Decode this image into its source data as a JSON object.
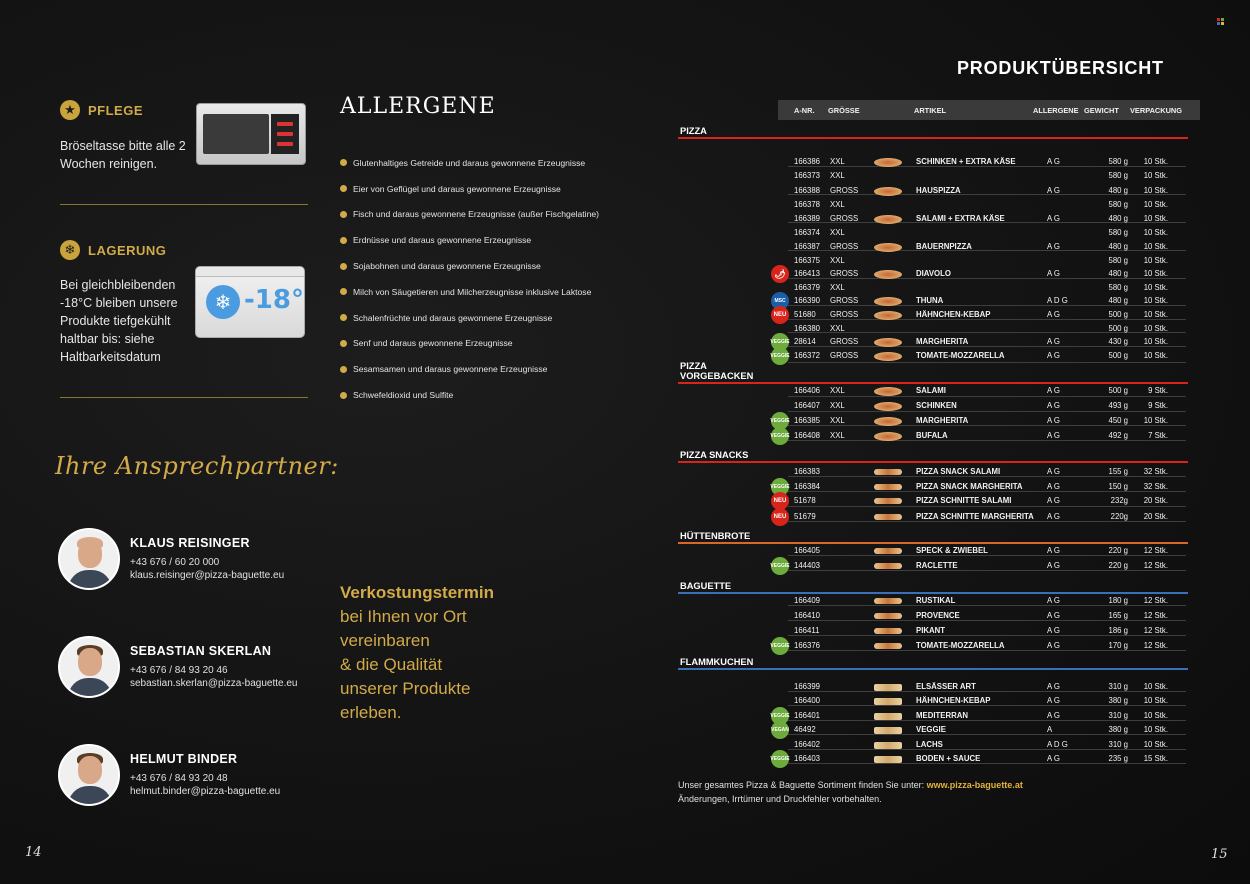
{
  "left_page": {
    "pflege": {
      "title": "PFLEGE",
      "text": "Bröseltasse bitte alle 2 Wochen reinigen."
    },
    "lagerung": {
      "title": "LAGERUNG",
      "text": "Bei gleichbleibenden -18°C bleiben unsere Produkte tiefgekühlt haltbar bis: siehe Haltbarkeitsdatum",
      "freezer_label": "-18°"
    },
    "allergene": {
      "title": "ALLERGENE",
      "items": [
        "Glutenhaltiges Getreide und daraus gewonnene Erzeugnisse",
        "Eier von Geflügel und daraus gewonnene Erzeugnisse",
        "Fisch und daraus gewonnene Erzeugnisse (außer Fischgelatine)",
        "Erdnüsse und daraus gewonnene Erzeugnisse",
        "Sojabohnen und daraus gewonnene Erzeugnisse",
        "Milch von Säugetieren und Milcherzeugnisse inklusive Laktose",
        "Schalenfrüchte und daraus gewonnene Erzeugnisse",
        "Senf und daraus gewonnene Erzeugnisse",
        "Sesamsamen und daraus gewonnene Erzeugnisse",
        "Schwefeldioxid und Sulfite"
      ]
    },
    "contacts_title": "Ihre Ansprechpartner:",
    "contacts": [
      {
        "name": "KLAUS REISINGER",
        "phone": "+43 676 / 60 20 000",
        "email": "klaus.reisinger@pizza-baguette.eu"
      },
      {
        "name": "SEBASTIAN SKERLAN",
        "phone": "+43 676 / 84 93 20 46",
        "email": "sebastian.skerlan@pizza-baguette.eu"
      },
      {
        "name": "HELMUT BINDER",
        "phone": "+43 676 / 84 93 20 48",
        "email": "helmut.binder@pizza-baguette.eu"
      }
    ],
    "verkostung": {
      "line1": "Verkostungstermin",
      "line2": "bei Ihnen vor Ort",
      "line3": "vereinbaren",
      "line4": "& die Qualität",
      "line5": "unserer Produkte",
      "line6": "erleben."
    },
    "page_number": "14"
  },
  "right_page": {
    "title": "PRODUKTÜBERSICHT",
    "columns": {
      "anr": "A-NR.",
      "groesse": "GRÖSSE",
      "artikel": "ARTIKEL",
      "allergene": "ALLERGENE",
      "gewicht": "GEWICHT",
      "verpackung": "VERPACKUNG"
    },
    "categories": [
      {
        "label": "PIZZA",
        "color": "#d8251c"
      },
      {
        "label": "PIZZA VORGEBACKEN",
        "color": "#d8251c"
      },
      {
        "label": "PIZZA SNACKS",
        "color": "#d8251c"
      },
      {
        "label": "HÜTTENBROTE",
        "color": "#d7672a"
      },
      {
        "label": "BAGUETTE",
        "color": "#3b6fb6"
      },
      {
        "label": "FLAMMKUCHEN",
        "color": "#3b6fb6"
      }
    ],
    "rows": [
      {
        "anr": "166386",
        "size": "XXL",
        "name": "SCHINKEN + EXTRA KÄSE",
        "allergens": "A G",
        "weight": "580 g",
        "pack": "10 Stk."
      },
      {
        "anr": "166373",
        "size": "XXL",
        "name": "",
        "allergens": "",
        "weight": "580 g",
        "pack": "10 Stk."
      },
      {
        "anr": "166388",
        "size": "GROSS",
        "name": "HAUSPIZZA",
        "allergens": "A G",
        "weight": "480 g",
        "pack": "10 Stk."
      },
      {
        "anr": "166378",
        "size": "XXL",
        "name": "",
        "allergens": "",
        "weight": "580 g",
        "pack": "10 Stk."
      },
      {
        "anr": "166389",
        "size": "GROSS",
        "name": "SALAMI + EXTRA KÄSE",
        "allergens": "A G",
        "weight": "480 g",
        "pack": "10 Stk."
      },
      {
        "anr": "166374",
        "size": "XXL",
        "name": "",
        "allergens": "",
        "weight": "580 g",
        "pack": "10 Stk."
      },
      {
        "anr": "166387",
        "size": "GROSS",
        "name": "BAUERNPIZZA",
        "allergens": "A G",
        "weight": "480 g",
        "pack": "10 Stk."
      },
      {
        "anr": "166375",
        "size": "XXL",
        "name": "",
        "allergens": "",
        "weight": "580 g",
        "pack": "10 Stk."
      },
      {
        "anr": "166413",
        "size": "GROSS",
        "name": "DIAVOLO",
        "allergens": "A G",
        "weight": "480 g",
        "pack": "10 Stk."
      },
      {
        "anr": "166379",
        "size": "XXL",
        "name": "",
        "allergens": "",
        "weight": "580 g",
        "pack": "10 Stk."
      },
      {
        "anr": "166390",
        "size": "GROSS",
        "name": "THUNA",
        "allergens": "A D G",
        "weight": "480 g",
        "pack": "10 Stk."
      },
      {
        "anr": "51680",
        "size": "GROSS",
        "name": "HÄHNCHEN-KEBAP",
        "allergens": "A G",
        "weight": "500 g",
        "pack": "10 Stk."
      },
      {
        "anr": "166380",
        "size": "XXL",
        "name": "",
        "allergens": "",
        "weight": "500 g",
        "pack": "10 Stk."
      },
      {
        "anr": "28614",
        "size": "GROSS",
        "name": "MARGHERITA",
        "allergens": "A G",
        "weight": "430 g",
        "pack": "10 Stk."
      },
      {
        "anr": "166372",
        "size": "GROSS",
        "name": "TOMATE-MOZZARELLA",
        "allergens": "A G",
        "weight": "500 g",
        "pack": "10 Stk."
      },
      {
        "anr": "166406",
        "size": "XXL",
        "name": "SALAMI",
        "allergens": "A G",
        "weight": "500 g",
        "pack": "9 Stk."
      },
      {
        "anr": "166407",
        "size": "XXL",
        "name": "SCHINKEN",
        "allergens": "A G",
        "weight": "493 g",
        "pack": "9 Stk."
      },
      {
        "anr": "166385",
        "size": "XXL",
        "name": "MARGHERITA",
        "allergens": "A G",
        "weight": "450 g",
        "pack": "10 Stk."
      },
      {
        "anr": "166408",
        "size": "XXL",
        "name": "BUFALA",
        "allergens": "A G",
        "weight": "492 g",
        "pack": "7 Stk."
      },
      {
        "anr": "166383",
        "size": "",
        "name": "PIZZA SNACK SALAMI",
        "allergens": "A G",
        "weight": "155 g",
        "pack": "32 Stk."
      },
      {
        "anr": "166384",
        "size": "",
        "name": "PIZZA SNACK MARGHERITA",
        "allergens": "A G",
        "weight": "150 g",
        "pack": "32 Stk."
      },
      {
        "anr": "51678",
        "size": "",
        "name": "PIZZA SCHNITTE SALAMI",
        "allergens": "A G",
        "weight": "232g",
        "pack": "20 Stk."
      },
      {
        "anr": "51679",
        "size": "",
        "name": "PIZZA SCHNITTE MARGHERITA",
        "allergens": "A G",
        "weight": "220g",
        "pack": "20 Stk."
      },
      {
        "anr": "166405",
        "size": "",
        "name": "SPECK & ZWIEBEL",
        "allergens": "A G",
        "weight": "220 g",
        "pack": "12 Stk."
      },
      {
        "anr": "144403",
        "size": "",
        "name": "RACLETTE",
        "allergens": "A G",
        "weight": "220 g",
        "pack": "12 Stk."
      },
      {
        "anr": "166409",
        "size": "",
        "name": "RUSTIKAL",
        "allergens": "A G",
        "weight": "180 g",
        "pack": "12 Stk."
      },
      {
        "anr": "166410",
        "size": "",
        "name": "PROVENCE",
        "allergens": "A G",
        "weight": "165 g",
        "pack": "12 Stk."
      },
      {
        "anr": "166411",
        "size": "",
        "name": "PIKANT",
        "allergens": "A G",
        "weight": "186 g",
        "pack": "12 Stk."
      },
      {
        "anr": "166376",
        "size": "",
        "name": "TOMATE-MOZZARELLA",
        "allergens": "A G",
        "weight": "170 g",
        "pack": "12 Stk."
      },
      {
        "anr": "166399",
        "size": "",
        "name": "ELSÄSSER ART",
        "allergens": "A G",
        "weight": "310 g",
        "pack": "10 Stk."
      },
      {
        "anr": "166400",
        "size": "",
        "name": "HÄHNCHEN-KEBAP",
        "allergens": "A G",
        "weight": "380 g",
        "pack": "10 Stk."
      },
      {
        "anr": "166401",
        "size": "",
        "name": "MEDITERRAN",
        "allergens": "A G",
        "weight": "310 g",
        "pack": "10 Stk."
      },
      {
        "anr": "46492",
        "size": "",
        "name": "VEGGIE",
        "allergens": "A",
        "weight": "380 g",
        "pack": "10 Stk."
      },
      {
        "anr": "166402",
        "size": "",
        "name": "LACHS",
        "allergens": "A D G",
        "weight": "310 g",
        "pack": "10 Stk."
      },
      {
        "anr": "166403",
        "size": "",
        "name": "BODEN + SAUCE",
        "allergens": "A G",
        "weight": "235 g",
        "pack": "15 Stk."
      }
    ],
    "badges": {
      "veggie": "VEGGIE",
      "vegan": "VEGAN",
      "neu": "NEU",
      "msc": "MSC",
      "scharf": "🌶"
    },
    "footer": {
      "line1_prefix": "Unser gesamtes Pizza & Baguette Sortiment finden Sie unter: ",
      "line1_link": "www.pizza-baguette.at",
      "line2": "Änderungen, Irrtümer und Druckfehler vorbehalten."
    },
    "page_number": "15"
  },
  "colors": {
    "gold": "#d2aa48",
    "pizza_red": "#d8251c",
    "huettenbrote_orange": "#d7672a",
    "baguette_blue": "#3b6fb6",
    "veggie_green": "#6cab3c"
  },
  "icons": [
    "star-icon",
    "snowflake-icon",
    "oven-image",
    "freezer-image",
    "chili-icon",
    "msc-icon"
  ]
}
